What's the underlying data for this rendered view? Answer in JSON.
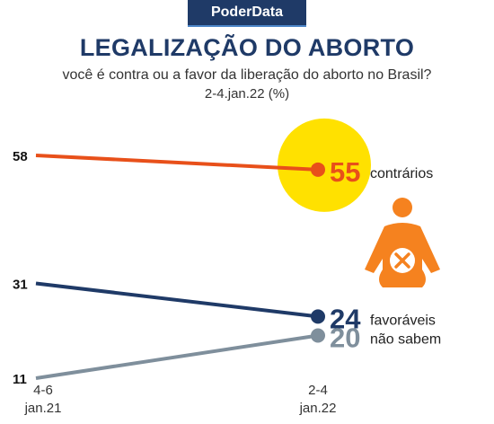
{
  "header": {
    "brand": "PoderData",
    "title": "LEGALIZAÇÃO DO ABORTO",
    "subtitle": "você é contra ou a favor da liberação do aborto no Brasil?",
    "period": "2-4.jan.22 (%)"
  },
  "colors": {
    "brand_bg": "#1f3a67",
    "highlight": "#ffe100",
    "icon": "#f5821f",
    "icon_cross": "#ffffff"
  },
  "icon": "pregnant-woman-crossed-icon",
  "chart_data": {
    "type": "line",
    "x": [
      "4-6 jan.21",
      "2-4 jan.22"
    ],
    "x_tick_lines": [
      [
        "4-6",
        "jan.21"
      ],
      [
        "2-4",
        "jan.22"
      ]
    ],
    "ylim": [
      11,
      58
    ],
    "grid": false,
    "legend": "inline-right",
    "series": [
      {
        "name": "contrários",
        "values": [
          58,
          55
        ],
        "color": "#e8501a",
        "start_label": "58",
        "end_label": "55"
      },
      {
        "name": "favoráveis",
        "values": [
          31,
          24
        ],
        "color": "#1f3a67",
        "start_label": "31",
        "end_label": "24"
      },
      {
        "name": "não sabem",
        "values": [
          11,
          20
        ],
        "color": "#7f8f9c",
        "start_label": "11",
        "end_label": "20"
      }
    ]
  }
}
